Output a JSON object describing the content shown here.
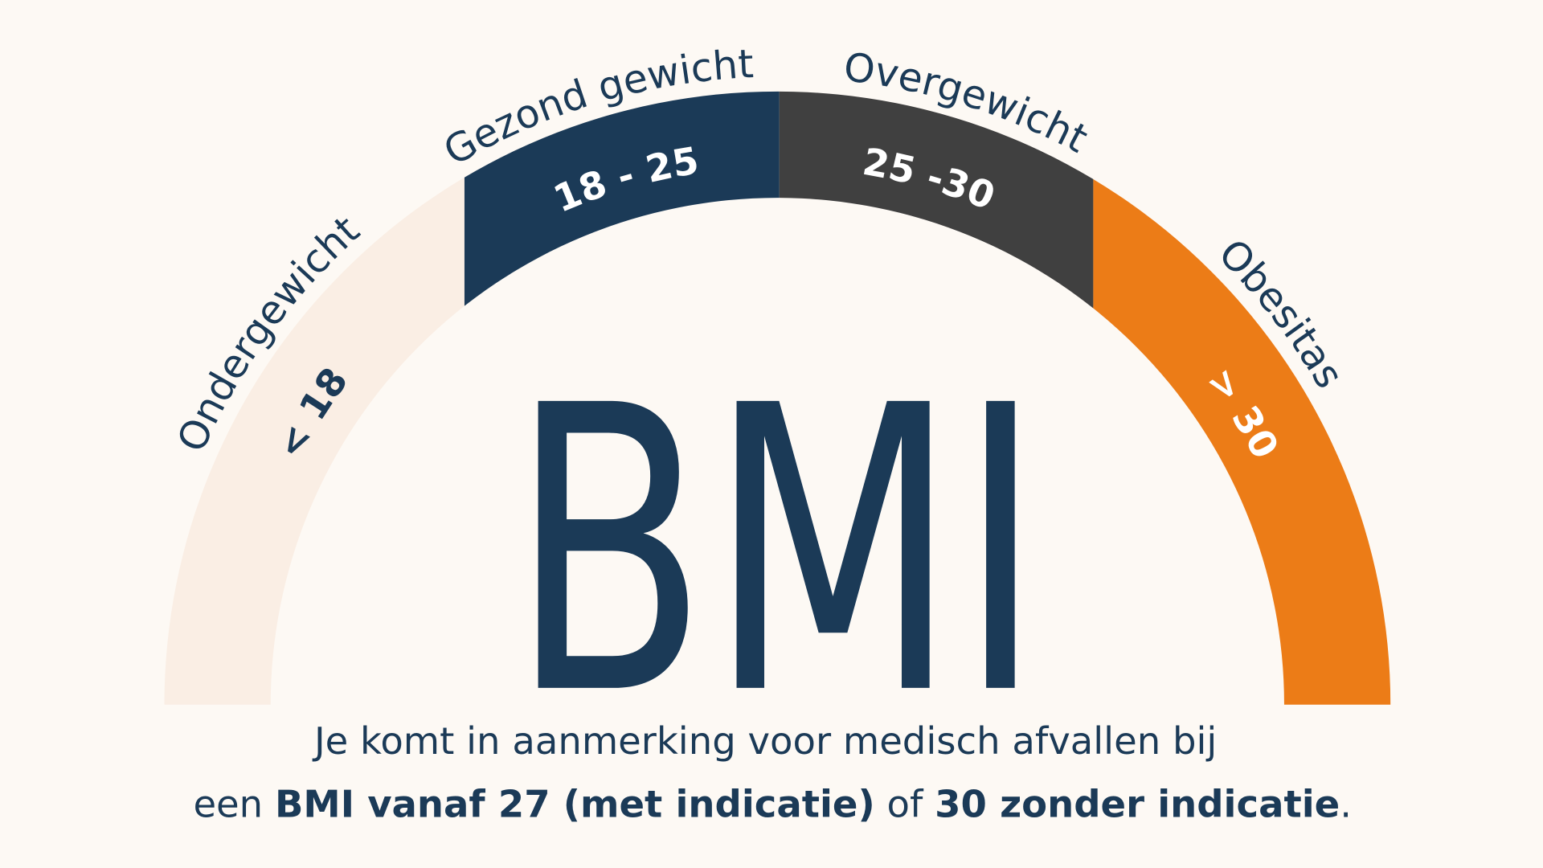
{
  "colors": {
    "background": "#fdf9f4",
    "underweight": "#faeee4",
    "healthy": "#1b3a57",
    "overweight": "#404040",
    "obesity": "#ec7c17",
    "text": "#1b3a57"
  },
  "gauge": {
    "segments": [
      {
        "label": "Ondergewicht",
        "range": "< 18"
      },
      {
        "label": "Gezond gewicht",
        "range": "18 - 25"
      },
      {
        "label": "Overgewicht",
        "range": "25 -30"
      },
      {
        "label": "Obesitas",
        "range": "> 30"
      }
    ]
  },
  "title": "BMI",
  "caption": {
    "line1": "Je komt in aanmerking voor medisch afvallen bij",
    "line2_a": "een ",
    "line2_b": "BMI vanaf 27 (met indicatie)",
    "line2_c": " of ",
    "line2_d": "30 zonder indicatie",
    "line2_e": "."
  }
}
